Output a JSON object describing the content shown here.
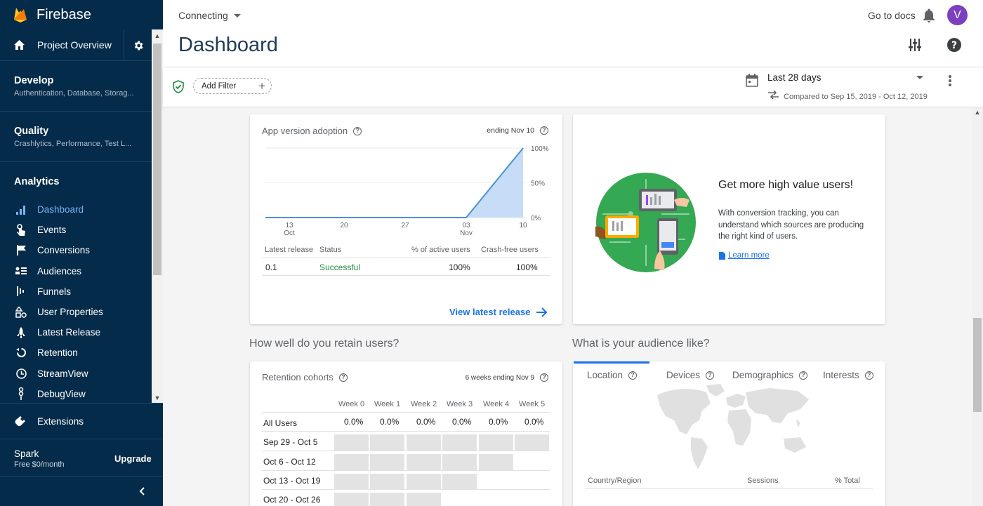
{
  "app": {
    "name": "Firebase"
  },
  "sidebar": {
    "project_overview": "Project Overview",
    "develop": {
      "title": "Develop",
      "subtitle": "Authentication, Database, Storag..."
    },
    "quality": {
      "title": "Quality",
      "subtitle": "Crashlytics, Performance, Test L..."
    },
    "analytics": {
      "title": "Analytics"
    },
    "items": [
      {
        "label": "Dashboard",
        "icon": "bar-chart-icon",
        "active": true
      },
      {
        "label": "Events",
        "icon": "touch-icon"
      },
      {
        "label": "Conversions",
        "icon": "flag-icon"
      },
      {
        "label": "Audiences",
        "icon": "audiences-icon"
      },
      {
        "label": "Funnels",
        "icon": "funnel-icon"
      },
      {
        "label": "User Properties",
        "icon": "shapes-icon"
      },
      {
        "label": "Latest Release",
        "icon": "release-icon"
      },
      {
        "label": "Retention",
        "icon": "retention-icon"
      },
      {
        "label": "StreamView",
        "icon": "clock-icon"
      },
      {
        "label": "DebugView",
        "icon": "debug-icon"
      }
    ],
    "extensions": "Extensions",
    "plan": {
      "name": "Spark",
      "price": "Free $0/month",
      "upgrade": "Upgrade"
    }
  },
  "header": {
    "project": "Connecting",
    "title": "Dashboard",
    "docs": "Go to docs",
    "avatar": "V"
  },
  "filters": {
    "add_filter": "Add Filter",
    "date_range": "Last 28 days",
    "compared": "Compared to Sep 15, 2019 - Oct 12, 2019"
  },
  "app_version": {
    "title": "App version adoption",
    "ending": "ending Nov 10",
    "columns": [
      "Latest release",
      "Status",
      "% of active users",
      "Crash-free users"
    ],
    "row": {
      "release": "0.1",
      "status": "Successful",
      "active": "100%",
      "crash_free": "100%"
    },
    "link": "View latest release",
    "chart_data": {
      "type": "area",
      "x": [
        "13 Oct",
        "20",
        "27",
        "03 Nov",
        "10"
      ],
      "y_ticks": [
        "100%",
        "50%",
        "0%"
      ],
      "ylim": [
        0,
        100
      ],
      "series": [
        {
          "values": [
            0,
            0,
            0,
            0,
            100
          ]
        }
      ]
    },
    "x_ticks": [
      {
        "top": "13",
        "bottom": "Oct"
      },
      {
        "top": "20",
        "bottom": ""
      },
      {
        "top": "27",
        "bottom": ""
      },
      {
        "top": "03",
        "bottom": "Nov"
      },
      {
        "top": "10",
        "bottom": ""
      }
    ],
    "y_ticks": [
      "100%",
      "50%",
      "0%"
    ]
  },
  "promo": {
    "title": "Get more high value users!",
    "body": "With conversion tracking, you can understand which sources are producing the right kind of users.",
    "link": "Learn more"
  },
  "retention": {
    "section_title": "How well do you retain users?",
    "title": "Retention cohorts",
    "ending": "6 weeks ending Nov 9",
    "weeks": [
      "Week 0",
      "Week 1",
      "Week 2",
      "Week 3",
      "Week 4",
      "Week 5"
    ],
    "rows": [
      {
        "label": "All Users",
        "values": [
          "0.0%",
          "0.0%",
          "0.0%",
          "0.0%",
          "0.0%",
          "0.0%"
        ]
      },
      {
        "label": "Sep 29 - Oct 5",
        "cells": 6
      },
      {
        "label": "Oct 6 - Oct 12",
        "cells": 5
      },
      {
        "label": "Oct 13 - Oct 19",
        "cells": 4
      },
      {
        "label": "Oct 20 - Oct 26",
        "cells": 3
      }
    ]
  },
  "audience": {
    "section_title": "What is your audience like?",
    "tabs": [
      "Location",
      "Devices",
      "Demographics",
      "Interests"
    ],
    "columns": [
      "Country/Region",
      "Sessions",
      "% Total"
    ]
  }
}
